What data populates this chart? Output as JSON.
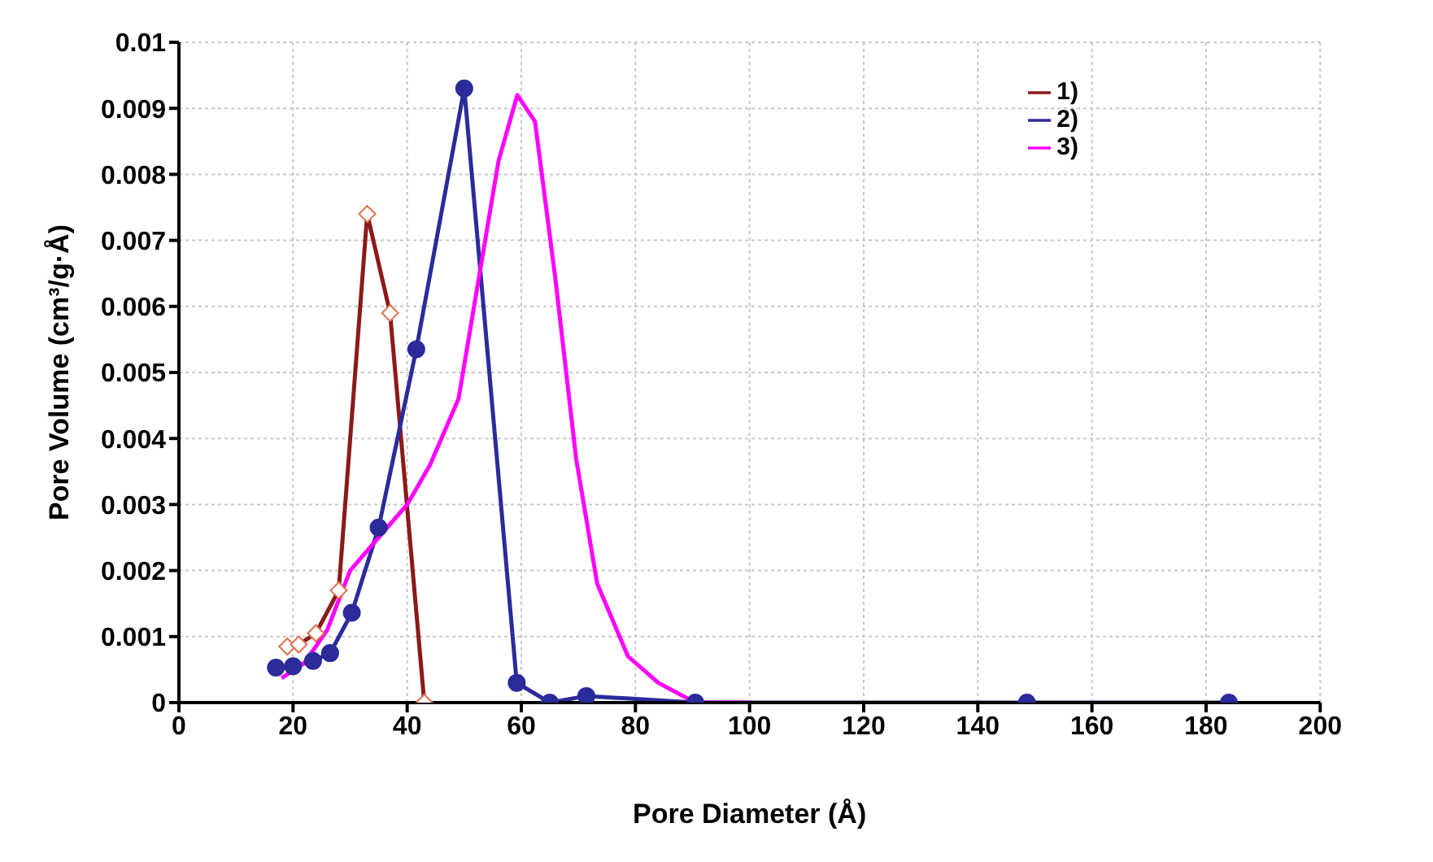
{
  "chart_data": {
    "type": "line",
    "xlabel": "Pore Diameter (Å)",
    "ylabel": "Pore Volume (cm³/g·Å)",
    "xlim": [
      0,
      200
    ],
    "xticks": [
      0,
      20,
      40,
      60,
      80,
      100,
      120,
      140,
      160,
      180,
      200
    ],
    "ylim": [
      0,
      0.01
    ],
    "yticks": [
      0,
      0.001,
      0.002,
      0.003,
      0.004,
      0.005,
      0.006,
      0.007,
      0.008,
      0.009,
      0.01
    ],
    "grid": true,
    "legend": "top right",
    "series": [
      {
        "name": "1)",
        "color": "#8b1a1a",
        "marker": "diamond",
        "x": [
          19,
          21,
          24,
          28,
          33,
          37,
          43
        ],
        "values": [
          0.00085,
          0.00088,
          0.00105,
          0.0017,
          0.0074,
          0.0059,
          0
        ]
      },
      {
        "name": "2)",
        "color": "#2b2b9b",
        "marker": "circle",
        "x": [
          17,
          20,
          23.5,
          26.5,
          30.3,
          35,
          41.6,
          50,
          59.2,
          65,
          71.4,
          90.5,
          148.6,
          184
        ],
        "values": [
          0.00053,
          0.00055,
          0.00063,
          0.00075,
          0.00136,
          0.00265,
          0.00535,
          0.0093,
          0.0003,
          0,
          0.0001,
          0,
          0,
          0
        ]
      },
      {
        "name": "3)",
        "color": "#ff00ff",
        "marker": "none",
        "x": [
          18,
          22,
          26,
          30,
          35,
          40,
          44,
          49,
          52.5,
          56,
          59.3,
          62.4,
          66,
          69.6,
          73.3,
          78.7,
          84,
          90.5,
          100
        ],
        "values": [
          0.00037,
          0.0006,
          0.0011,
          0.002,
          0.0025,
          0.003,
          0.0036,
          0.0046,
          0.0064,
          0.0082,
          0.0092,
          0.0088,
          0.0064,
          0.0037,
          0.0018,
          0.0007,
          0.0003,
          0,
          0
        ]
      }
    ]
  }
}
